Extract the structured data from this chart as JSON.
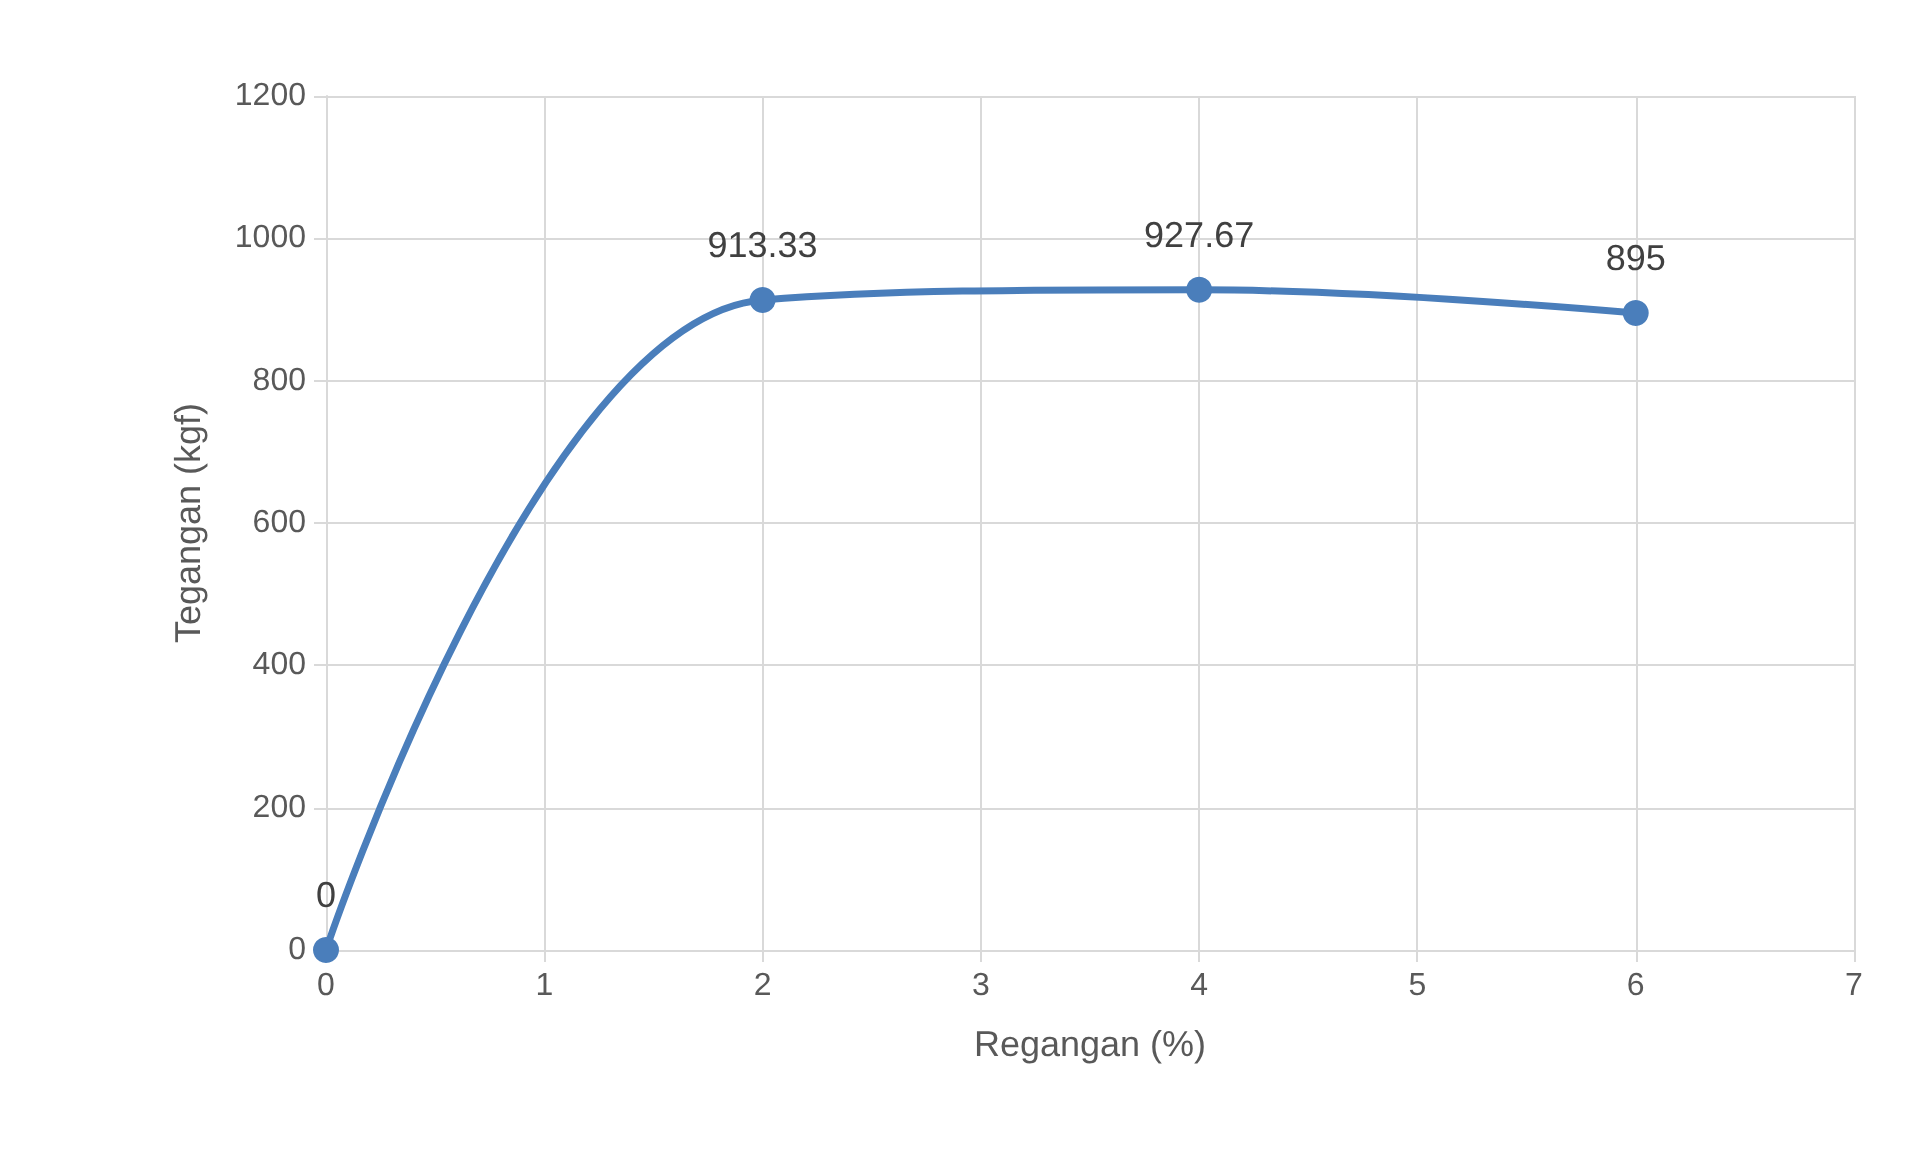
{
  "chart_data": {
    "type": "line",
    "xlabel": "Regangan (%)",
    "ylabel": "Tegangan (kgf)",
    "x": [
      0,
      2,
      4,
      6
    ],
    "series": [
      {
        "color": "#4a7ebb",
        "values": [
          0,
          913.33,
          927.67,
          895
        ]
      }
    ],
    "xlim": [
      0,
      7
    ],
    "xticks": [
      0,
      1,
      2,
      3,
      4,
      5,
      6,
      7
    ],
    "ylim": [
      0,
      1200
    ],
    "yticks": [
      0,
      200,
      400,
      600,
      800,
      1000,
      1200
    ],
    "grid": true,
    "marker": "circle",
    "line_style": "solid",
    "data_labels": true
  }
}
